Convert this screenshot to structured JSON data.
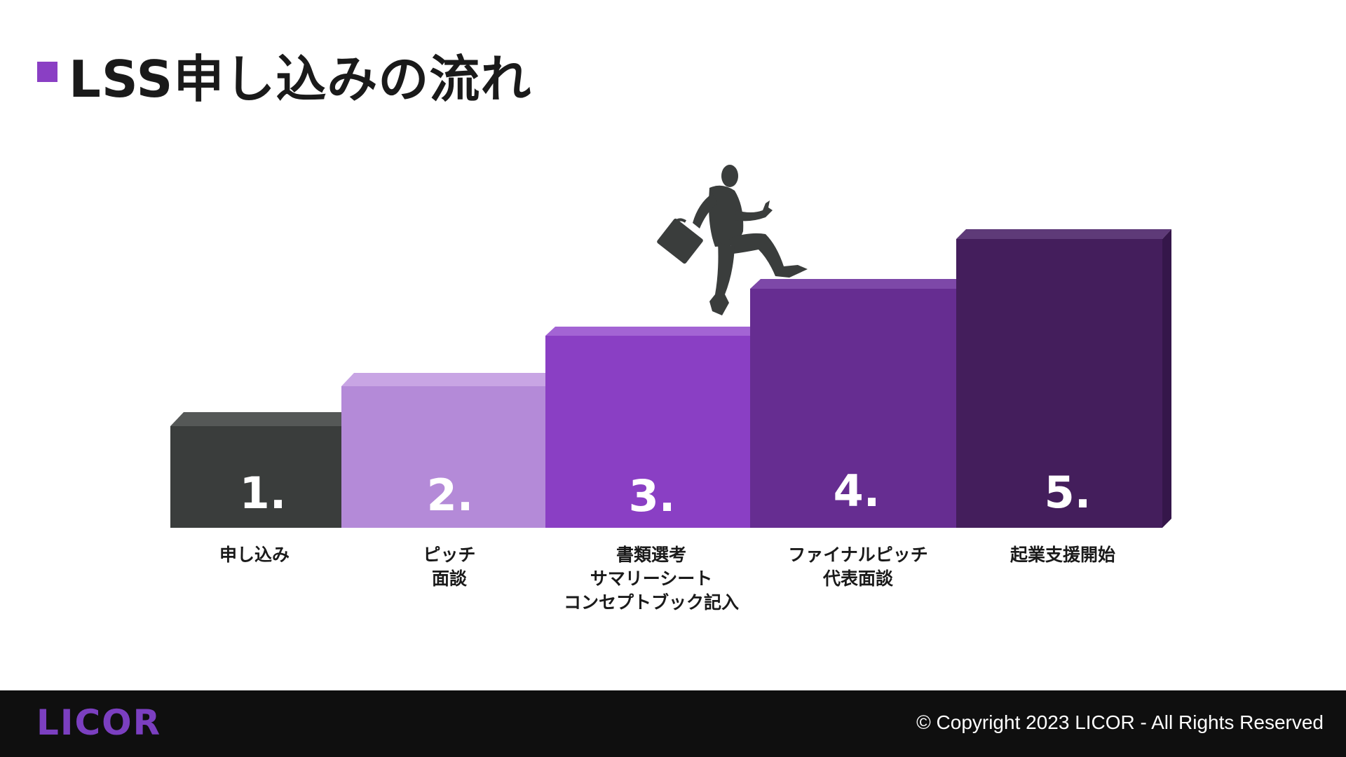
{
  "page": {
    "title": "LSS申し込みの流れ"
  },
  "steps": [
    {
      "number": "1.",
      "label": "申し込み",
      "color": "#3a3d3c",
      "top_color": "#555857",
      "side_color": "#2c2e2d"
    },
    {
      "number": "2.",
      "label": "ピッチ\n面談",
      "color": "#b48ad8",
      "top_color": "#c8a5e4",
      "side_color": "#9c6fc4"
    },
    {
      "number": "3.",
      "label": "書類選考\nサマリーシート\nコンセプトブック記入",
      "color": "#8a3fc4",
      "top_color": "#a364d4",
      "side_color": "#7232a8"
    },
    {
      "number": "4.",
      "label": "ファイナルピッチ\n代表面談",
      "color": "#662d91",
      "top_color": "#7d48a8",
      "side_color": "#52237a"
    },
    {
      "number": "5.",
      "label": "起業支援開始",
      "color": "#441e5c",
      "top_color": "#5e3a78",
      "side_color": "#35164a"
    }
  ],
  "footer": {
    "logo": "LICOR",
    "copyright": "© Copyright 2023 LICOR - All Rights Reserved",
    "background": "#0f0f0f",
    "logo_color": "#7b3fc0"
  },
  "icons": [
    "businessman-running-icon"
  ]
}
